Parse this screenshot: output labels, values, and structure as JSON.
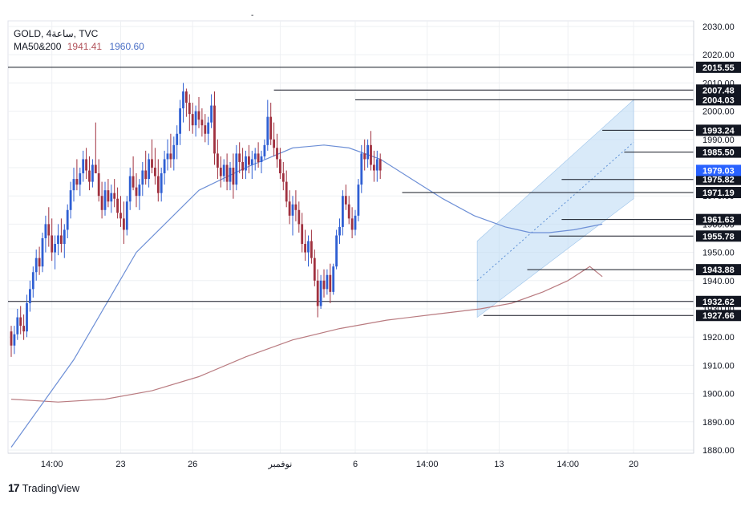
{
  "header": {
    "symbol_line": "GOLD, 4ساعة, TVC",
    "ma_label": "MA50&200",
    "ma200_value": "1941.41",
    "ma50_value": "1960.60",
    "top_mark": "-"
  },
  "branding": {
    "logo": "17",
    "name": "TradingView"
  },
  "colors": {
    "up": "#2f5fd3",
    "down": "#a0313f",
    "ma50": "#6d8fd6",
    "ma200": "#b97b80",
    "channel": "#bfdcf5",
    "grid": "#eef0f3",
    "axis_text": "#131722",
    "label_bg": "#131722",
    "current_bg": "#2962ff"
  },
  "chart_data": {
    "type": "candlestick",
    "y_axis": {
      "min": 1880,
      "max": 2030,
      "ticks": [
        "2030.00",
        "2020.00",
        "2010.00",
        "2000.00",
        "1990.00",
        "1980.00",
        "1970.00",
        "1960.00",
        "1950.00",
        "1940.00",
        "1930.00",
        "1920.00",
        "1910.00",
        "1900.00",
        "1890.00",
        "1880.00"
      ]
    },
    "x_axis": {
      "labels": [
        "14:00",
        "23",
        "26",
        "نوفمبر",
        "6",
        "14:00",
        "13",
        "14:00",
        "20"
      ],
      "label_candle_index": [
        13,
        35,
        58,
        86,
        110,
        133,
        156,
        178,
        199
      ]
    },
    "levels": [
      {
        "label": "2015.55",
        "value": 2015.55,
        "from": 0
      },
      {
        "label": "2007.48",
        "value": 2007.48,
        "from": 84
      },
      {
        "label": "2004.03",
        "value": 2004.03,
        "from": 110
      },
      {
        "label": "1993.24",
        "value": 1993.24,
        "from": 189
      },
      {
        "label": "1985.50",
        "value": 1985.5,
        "from": 196
      },
      {
        "label": "1975.82",
        "value": 1975.82,
        "from": 176
      },
      {
        "label": "1971.19",
        "value": 1971.19,
        "from": 125
      },
      {
        "label": "1961.63",
        "value": 1961.63,
        "from": 176
      },
      {
        "label": "1955.78",
        "value": 1955.78,
        "from": 172
      },
      {
        "label": "1943.88",
        "value": 1943.88,
        "from": 165
      },
      {
        "label": "1932.62",
        "value": 1932.62,
        "from": 0
      },
      {
        "label": "1927.66",
        "value": 1927.66,
        "from": 151
      }
    ],
    "current_price": {
      "label": "1979.03",
      "value": 1979.03
    },
    "ohlc": [
      [
        1922,
        1924,
        1913,
        1917
      ],
      [
        1917,
        1924,
        1914,
        1921
      ],
      [
        1921,
        1930,
        1919,
        1927
      ],
      [
        1927,
        1931,
        1921,
        1924
      ],
      [
        1924,
        1928,
        1919,
        1922
      ],
      [
        1922,
        1935,
        1920,
        1932
      ],
      [
        1932,
        1940,
        1929,
        1937
      ],
      [
        1937,
        1945,
        1934,
        1943
      ],
      [
        1943,
        1951,
        1940,
        1948
      ],
      [
        1948,
        1952,
        1942,
        1945
      ],
      [
        1945,
        1957,
        1943,
        1955
      ],
      [
        1955,
        1963,
        1950,
        1960
      ],
      [
        1960,
        1966,
        1952,
        1956
      ],
      [
        1956,
        1962,
        1947,
        1950
      ],
      [
        1950,
        1956,
        1944,
        1953
      ],
      [
        1953,
        1960,
        1949,
        1956
      ],
      [
        1956,
        1962,
        1950,
        1953
      ],
      [
        1953,
        1960,
        1948,
        1958
      ],
      [
        1958,
        1967,
        1955,
        1965
      ],
      [
        1965,
        1975,
        1962,
        1972
      ],
      [
        1972,
        1980,
        1968,
        1976
      ],
      [
        1976,
        1983,
        1972,
        1974
      ],
      [
        1974,
        1980,
        1970,
        1978
      ],
      [
        1978,
        1986,
        1975,
        1983
      ],
      [
        1983,
        1987,
        1976,
        1979
      ],
      [
        1979,
        1984,
        1972,
        1975
      ],
      [
        1975,
        1983,
        1973,
        1981
      ],
      [
        1981,
        1996,
        1978,
        1978
      ],
      [
        1978,
        1983,
        1968,
        1970
      ],
      [
        1970,
        1975,
        1962,
        1965
      ],
      [
        1965,
        1975,
        1963,
        1972
      ],
      [
        1972,
        1976,
        1966,
        1968
      ],
      [
        1968,
        1974,
        1964,
        1971
      ],
      [
        1971,
        1976,
        1966,
        1969
      ],
      [
        1969,
        1973,
        1962,
        1964
      ],
      [
        1964,
        1970,
        1959,
        1962
      ],
      [
        1962,
        1968,
        1953,
        1958
      ],
      [
        1958,
        1970,
        1956,
        1968
      ],
      [
        1968,
        1980,
        1965,
        1977
      ],
      [
        1977,
        1984,
        1972,
        1973
      ],
      [
        1973,
        1978,
        1966,
        1970
      ],
      [
        1970,
        1976,
        1965,
        1974
      ],
      [
        1974,
        1982,
        1970,
        1979
      ],
      [
        1979,
        1986,
        1974,
        1976
      ],
      [
        1976,
        1985,
        1973,
        1983
      ],
      [
        1983,
        1990,
        1978,
        1980
      ],
      [
        1980,
        1987,
        1974,
        1977
      ],
      [
        1977,
        1983,
        1968,
        1971
      ],
      [
        1971,
        1980,
        1968,
        1978
      ],
      [
        1978,
        1986,
        1974,
        1983
      ],
      [
        1983,
        1990,
        1979,
        1985
      ],
      [
        1985,
        1992,
        1980,
        1983
      ],
      [
        1983,
        1991,
        1979,
        1988
      ],
      [
        1988,
        1995,
        1983,
        1992
      ],
      [
        1992,
        2004,
        1988,
        2001
      ],
      [
        2001,
        2010,
        1996,
        2007
      ],
      [
        2007,
        2008,
        1998,
        2003
      ],
      [
        2003,
        2006,
        1993,
        1999
      ],
      [
        1999,
        2003,
        1992,
        1995
      ],
      [
        1995,
        2002,
        1991,
        2000
      ],
      [
        2000,
        2005,
        1994,
        1997
      ],
      [
        1997,
        2001,
        1991,
        1995
      ],
      [
        1995,
        1999,
        1989,
        1992
      ],
      [
        1992,
        1998,
        1988,
        1996
      ],
      [
        1996,
        2006,
        1994,
        2002
      ],
      [
        2002,
        2007,
        1981,
        1985
      ],
      [
        1985,
        1990,
        1976,
        1980
      ],
      [
        1980,
        1984,
        1973,
        1977
      ],
      [
        1977,
        1983,
        1975,
        1981
      ],
      [
        1981,
        1985,
        1972,
        1975
      ],
      [
        1975,
        1982,
        1972,
        1980
      ],
      [
        1980,
        1985,
        1969,
        1974
      ],
      [
        1974,
        1988,
        1972,
        1985
      ],
      [
        1985,
        1989,
        1978,
        1982
      ],
      [
        1982,
        1987,
        1976,
        1979
      ],
      [
        1979,
        1986,
        1976,
        1984
      ],
      [
        1984,
        1988,
        1978,
        1981
      ],
      [
        1981,
        1986,
        1976,
        1983
      ],
      [
        1983,
        1987,
        1979,
        1985
      ],
      [
        1985,
        1989,
        1980,
        1982
      ],
      [
        1982,
        1986,
        1978,
        1984
      ],
      [
        1984,
        1990,
        1983,
        1988
      ],
      [
        1988,
        2004,
        1986,
        1998
      ],
      [
        1998,
        2003,
        1988,
        1990
      ],
      [
        1990,
        1996,
        1984,
        1987
      ],
      [
        1987,
        1992,
        1980,
        1983
      ],
      [
        1983,
        1987,
        1976,
        1978
      ],
      [
        1978,
        1982,
        1972,
        1975
      ],
      [
        1975,
        1979,
        1966,
        1968
      ],
      [
        1968,
        1972,
        1960,
        1963
      ],
      [
        1963,
        1970,
        1956,
        1967
      ],
      [
        1967,
        1972,
        1961,
        1965
      ],
      [
        1965,
        1968,
        1957,
        1960
      ],
      [
        1960,
        1964,
        1950,
        1953
      ],
      [
        1953,
        1958,
        1947,
        1950
      ],
      [
        1950,
        1956,
        1945,
        1954
      ],
      [
        1954,
        1958,
        1946,
        1948
      ],
      [
        1948,
        1951,
        1938,
        1940
      ],
      [
        1940,
        1944,
        1927,
        1931
      ],
      [
        1931,
        1942,
        1930,
        1940
      ],
      [
        1940,
        1944,
        1934,
        1937
      ],
      [
        1937,
        1944,
        1935,
        1942
      ],
      [
        1942,
        1946,
        1932,
        1936
      ],
      [
        1936,
        1946,
        1935,
        1945
      ],
      [
        1945,
        1958,
        1944,
        1956
      ],
      [
        1956,
        1962,
        1953,
        1959
      ],
      [
        1959,
        1972,
        1956,
        1970
      ],
      [
        1970,
        1974,
        1965,
        1967
      ],
      [
        1967,
        1970,
        1960,
        1962
      ],
      [
        1962,
        1966,
        1955,
        1958
      ],
      [
        1958,
        1965,
        1956,
        1963
      ],
      [
        1963,
        1976,
        1961,
        1974
      ],
      [
        1974,
        1988,
        1971,
        1985
      ],
      [
        1985,
        1990,
        1979,
        1983
      ],
      [
        1983,
        1990,
        1980,
        1988
      ],
      [
        1988,
        1993,
        1979,
        1981
      ],
      [
        1981,
        1986,
        1975,
        1979
      ],
      [
        1979,
        1986,
        1975,
        1983
      ],
      [
        1983,
        1985,
        1976,
        1979
      ]
    ],
    "ma50": [
      [
        0,
        1881
      ],
      [
        20,
        1912
      ],
      [
        40,
        1950
      ],
      [
        60,
        1972
      ],
      [
        75,
        1980
      ],
      [
        90,
        1987
      ],
      [
        100,
        1988
      ],
      [
        108,
        1987
      ],
      [
        118,
        1983
      ],
      [
        128,
        1976
      ],
      [
        138,
        1969
      ],
      [
        148,
        1963
      ],
      [
        158,
        1959
      ],
      [
        166,
        1957
      ],
      [
        172,
        1957
      ],
      [
        180,
        1958
      ],
      [
        189,
        1960
      ]
    ],
    "ma200": [
      [
        0,
        1898
      ],
      [
        15,
        1897
      ],
      [
        30,
        1898
      ],
      [
        45,
        1901
      ],
      [
        60,
        1906
      ],
      [
        75,
        1913
      ],
      [
        90,
        1919
      ],
      [
        105,
        1923
      ],
      [
        120,
        1926
      ],
      [
        135,
        1928
      ],
      [
        150,
        1930
      ],
      [
        160,
        1932
      ],
      [
        170,
        1936
      ],
      [
        178,
        1940
      ],
      [
        185,
        1945
      ],
      [
        189,
        1941.41
      ]
    ],
    "channel": {
      "upper_start": [
        149,
        1954
      ],
      "upper_end": [
        199,
        2004
      ],
      "lower_start": [
        149,
        1927
      ],
      "lower_end": [
        199,
        1969
      ],
      "mid_start": [
        149,
        1940
      ],
      "mid_end": [
        199,
        1989
      ]
    }
  }
}
